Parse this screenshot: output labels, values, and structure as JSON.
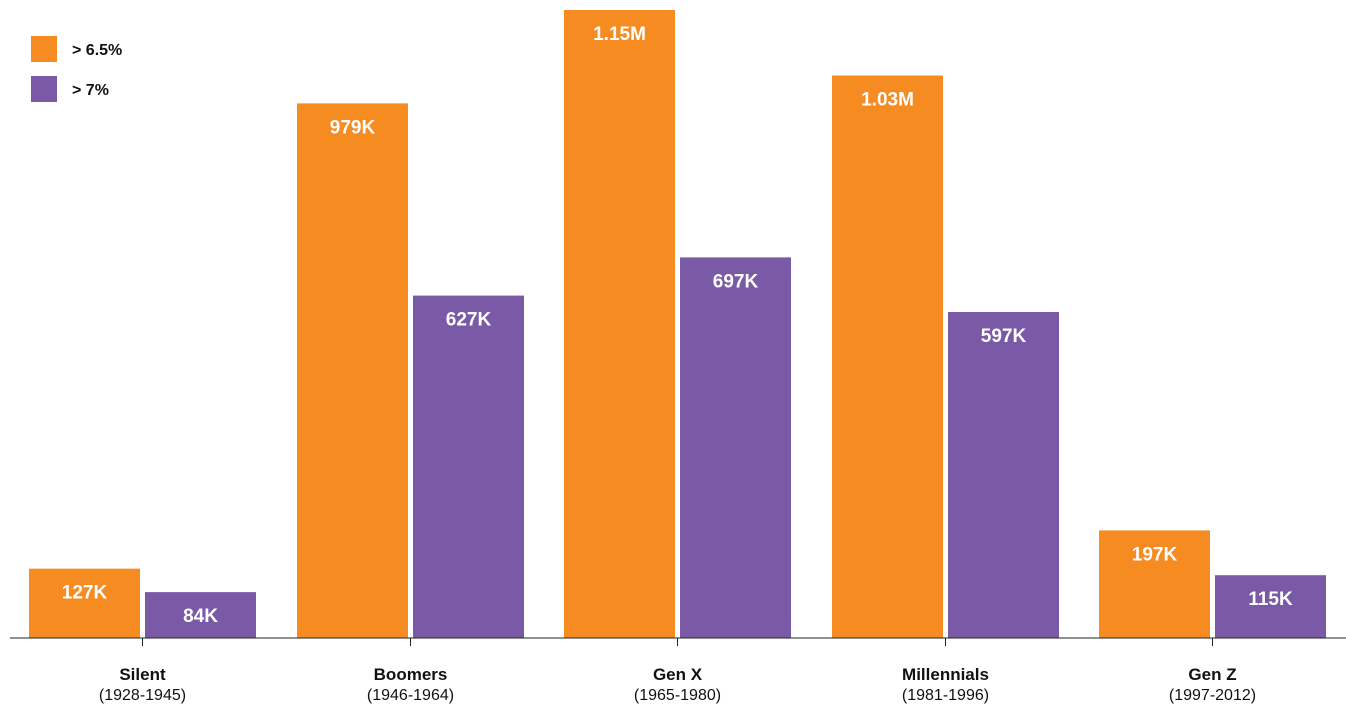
{
  "chart_data": {
    "type": "bar",
    "categories": [
      "Silent",
      "Boomers",
      "Gen X",
      "Millennials",
      "Gen Z"
    ],
    "category_years": [
      "(1928-1945)",
      "(1946-1964)",
      "(1965-1980)",
      "(1981-1996)",
      "(1997-2012)"
    ],
    "series": [
      {
        "name": "> 6.5%",
        "color": "#F68B22",
        "values": [
          127000,
          979000,
          1150000,
          1030000,
          197000
        ],
        "labels": [
          "127K",
          "979K",
          "1.15M",
          "1.03M",
          "197K"
        ]
      },
      {
        "name": "> 7%",
        "color": "#7A59A6",
        "values": [
          84000,
          627000,
          697000,
          597000,
          115000
        ],
        "labels": [
          "84K",
          "627K",
          "697K",
          "597K",
          "115K"
        ]
      }
    ],
    "ylim": [
      0,
      1150000
    ],
    "grid": false,
    "legend_position": "top-left"
  }
}
